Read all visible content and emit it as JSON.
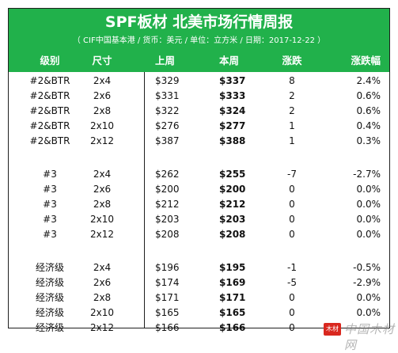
{
  "header": {
    "title": "SPF板材 北美市场行情周报",
    "subtitle": "（ CIF中国基本港 / 货币：美元 / 单位：立方米 / 日期：2017-12-22 ）"
  },
  "columns": {
    "grade": "级别",
    "size": "尺寸",
    "last_week": "上周",
    "this_week": "本周",
    "change": "涨跌",
    "change_pct": "涨跌幅"
  },
  "groups": [
    {
      "rows": [
        {
          "grade": "#2&BTR",
          "size": "2x4",
          "last": "$329",
          "this": "$337",
          "chg": "8",
          "pct": "2.4%"
        },
        {
          "grade": "#2&BTR",
          "size": "2x6",
          "last": "$331",
          "this": "$333",
          "chg": "2",
          "pct": "0.6%"
        },
        {
          "grade": "#2&BTR",
          "size": "2x8",
          "last": "$322",
          "this": "$324",
          "chg": "2",
          "pct": "0.6%"
        },
        {
          "grade": "#2&BTR",
          "size": "2x10",
          "last": "$276",
          "this": "$277",
          "chg": "1",
          "pct": "0.4%"
        },
        {
          "grade": "#2&BTR",
          "size": "2x12",
          "last": "$387",
          "this": "$388",
          "chg": "1",
          "pct": "0.3%"
        }
      ]
    },
    {
      "rows": [
        {
          "grade": "#3",
          "size": "2x4",
          "last": "$262",
          "this": "$255",
          "chg": "-7",
          "pct": "-2.7%"
        },
        {
          "grade": "#3",
          "size": "2x6",
          "last": "$200",
          "this": "$200",
          "chg": "0",
          "pct": "0.0%"
        },
        {
          "grade": "#3",
          "size": "2x8",
          "last": "$212",
          "this": "$212",
          "chg": "0",
          "pct": "0.0%"
        },
        {
          "grade": "#3",
          "size": "2x10",
          "last": "$203",
          "this": "$203",
          "chg": "0",
          "pct": "0.0%"
        },
        {
          "grade": "#3",
          "size": "2x12",
          "last": "$208",
          "this": "$208",
          "chg": "0",
          "pct": "0.0%"
        }
      ]
    },
    {
      "rows": [
        {
          "grade": "经济级",
          "size": "2x4",
          "last": "$196",
          "this": "$195",
          "chg": "-1",
          "pct": "-0.5%"
        },
        {
          "grade": "经济级",
          "size": "2x6",
          "last": "$174",
          "this": "$169",
          "chg": "-5",
          "pct": "-2.9%"
        },
        {
          "grade": "经济级",
          "size": "2x8",
          "last": "$171",
          "this": "$171",
          "chg": "0",
          "pct": "0.0%"
        },
        {
          "grade": "经济级",
          "size": "2x10",
          "last": "$165",
          "this": "$165",
          "chg": "0",
          "pct": "0.0%"
        },
        {
          "grade": "经济级",
          "size": "2x12",
          "last": "$166",
          "this": "$166",
          "chg": "0",
          "pct": ""
        }
      ]
    }
  ],
  "watermark": {
    "badge": "木材",
    "text": "中国木材网"
  },
  "colors": {
    "header_bg": "#21b14b",
    "header_text": "#ffffff",
    "border": "#1f1f1f"
  }
}
